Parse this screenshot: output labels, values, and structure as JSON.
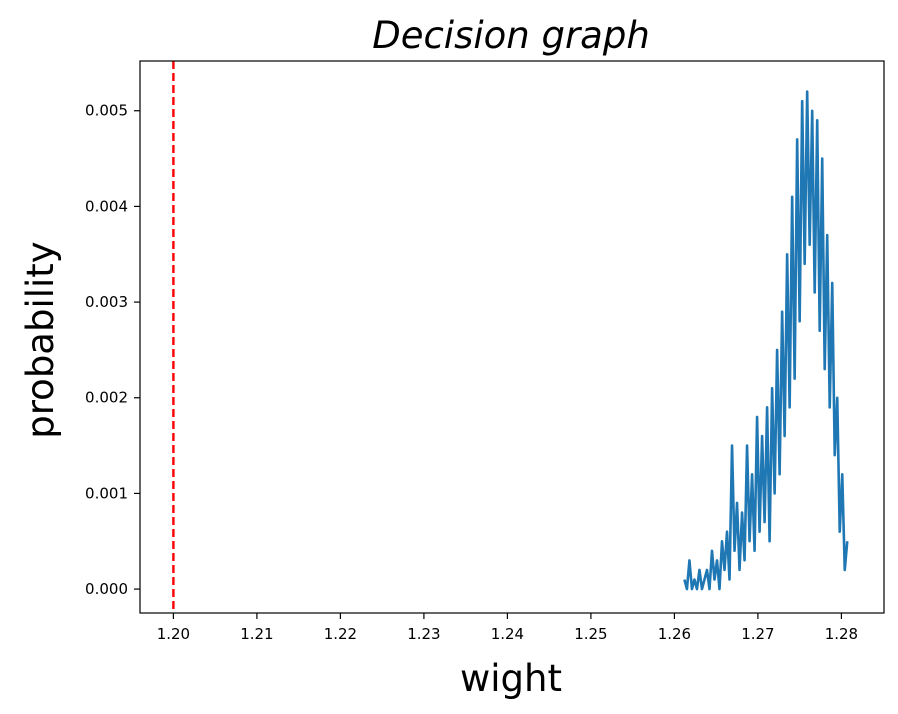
{
  "chart_data": {
    "type": "line",
    "title": "Decision graph",
    "xlabel": "wight",
    "ylabel": "probability",
    "xlim": [
      1.196,
      1.2851
    ],
    "ylim": [
      -0.00025,
      0.00552
    ],
    "xticks": [
      1.2,
      1.21,
      1.22,
      1.23,
      1.24,
      1.25,
      1.26,
      1.27,
      1.28
    ],
    "xtick_labels": [
      "1.20",
      "1.21",
      "1.22",
      "1.23",
      "1.24",
      "1.25",
      "1.26",
      "1.27",
      "1.28"
    ],
    "yticks": [
      0.0,
      0.001,
      0.002,
      0.003,
      0.004,
      0.005
    ],
    "ytick_labels": [
      "0.000",
      "0.001",
      "0.002",
      "0.003",
      "0.004",
      "0.005"
    ],
    "grid": false,
    "series": [
      {
        "color": "#1f77b4",
        "x": [
          1.2612,
          1.2615,
          1.2618,
          1.2621,
          1.2624,
          1.2627,
          1.263,
          1.2633,
          1.2636,
          1.2639,
          1.2642,
          1.2645,
          1.2648,
          1.2651,
          1.2654,
          1.2657,
          1.266,
          1.2663,
          1.2666,
          1.2669,
          1.2672,
          1.2675,
          1.2678,
          1.2681,
          1.2684,
          1.2687,
          1.269,
          1.2693,
          1.2696,
          1.2699,
          1.2702,
          1.2705,
          1.2708,
          1.2711,
          1.2714,
          1.2717,
          1.272,
          1.2723,
          1.2726,
          1.2729,
          1.2732,
          1.2735,
          1.2738,
          1.2741,
          1.2744,
          1.2747,
          1.275,
          1.2753,
          1.2756,
          1.2759,
          1.2762,
          1.2765,
          1.2768,
          1.2771,
          1.2774,
          1.2777,
          1.278,
          1.2783,
          1.2786,
          1.2789,
          1.2792,
          1.2795,
          1.2798,
          1.2801,
          1.2804,
          1.2807
        ],
        "y": [
          0.0001,
          0.0,
          0.0003,
          0.0,
          0.0001,
          0.0,
          0.0002,
          0.0,
          0.0001,
          0.0002,
          0.0,
          0.0004,
          0.0001,
          0.0003,
          0.0,
          0.0005,
          0.0002,
          0.0006,
          0.0001,
          0.0015,
          0.0004,
          0.0009,
          0.0002,
          0.0008,
          0.0003,
          0.0015,
          0.0005,
          0.0012,
          0.0004,
          0.0018,
          0.0006,
          0.0016,
          0.0007,
          0.0019,
          0.0005,
          0.0021,
          0.001,
          0.0025,
          0.0012,
          0.0029,
          0.0016,
          0.0035,
          0.0019,
          0.0041,
          0.0022,
          0.0047,
          0.0028,
          0.0051,
          0.0034,
          0.0052,
          0.0036,
          0.005,
          0.0031,
          0.0049,
          0.0027,
          0.0045,
          0.0023,
          0.0037,
          0.0019,
          0.0032,
          0.0014,
          0.002,
          0.0006,
          0.0012,
          0.0002,
          0.0005
        ]
      }
    ],
    "annotations": [
      {
        "type": "vline",
        "x": 1.2,
        "color": "#ff0000",
        "style": "dashed"
      }
    ]
  }
}
